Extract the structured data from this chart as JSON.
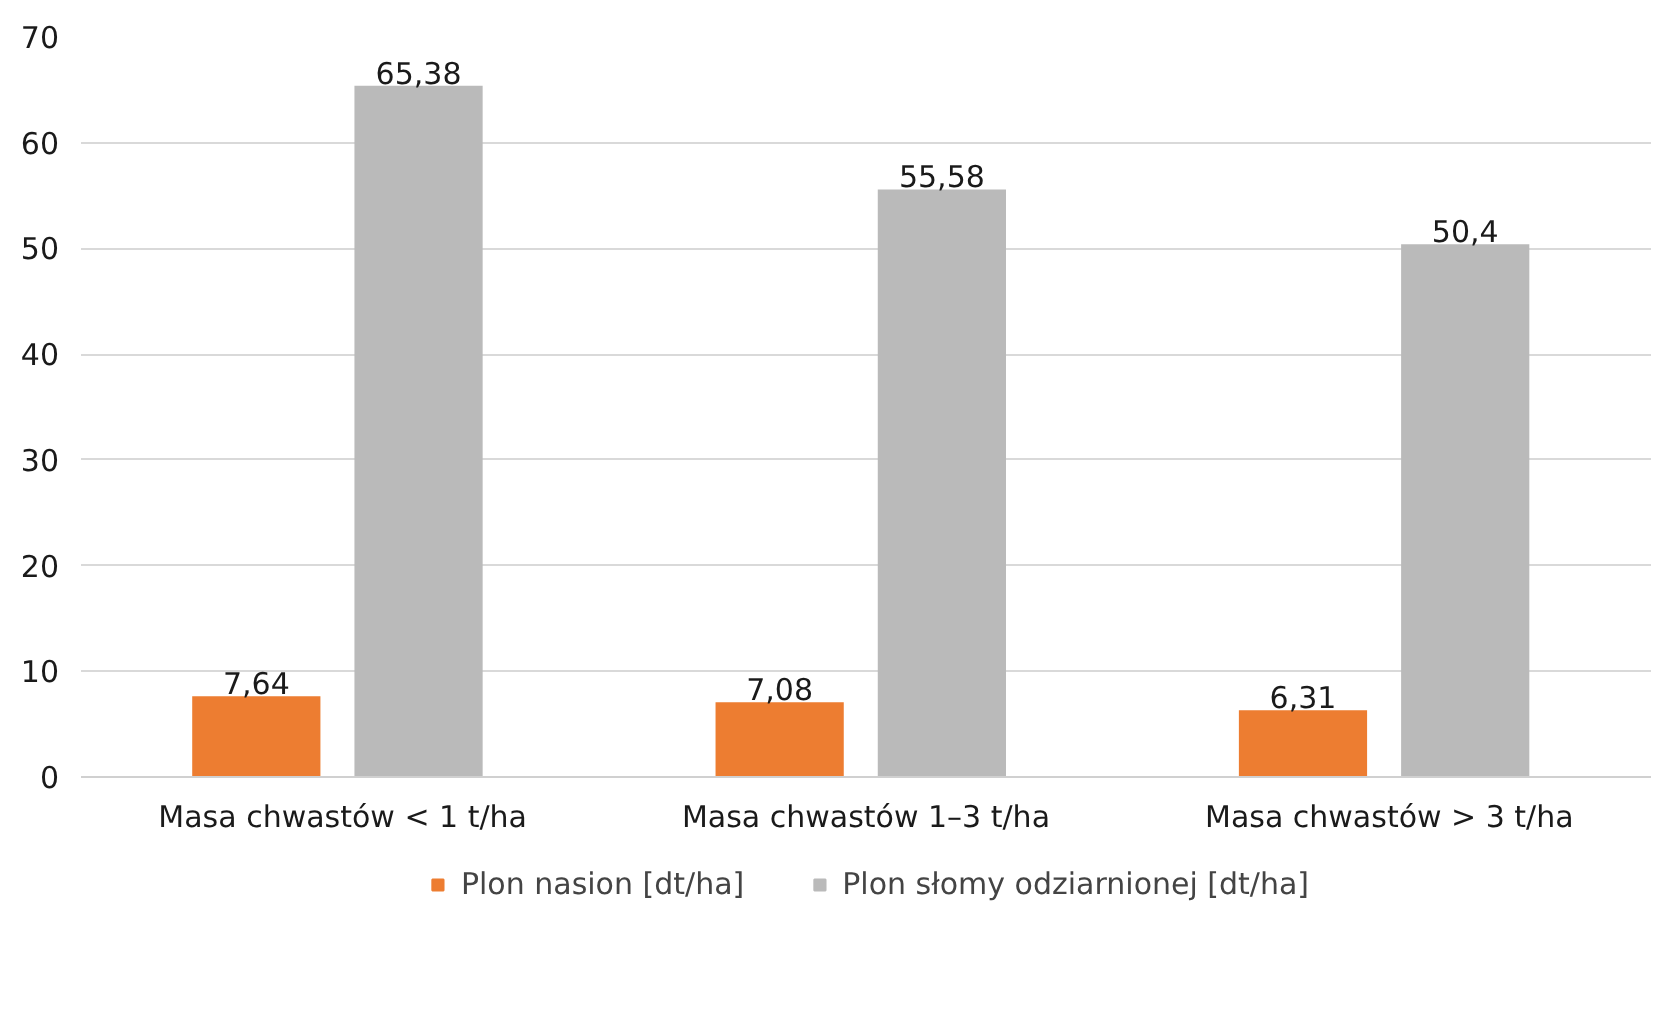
{
  "chart_data": {
    "type": "bar",
    "categories": [
      "Masa chwastów < 1 t/ha",
      "Masa chwastów 1–3 t/ha",
      "Masa chwastów > 3 t/ha"
    ],
    "series": [
      {
        "name": "Plon nasion [dt/ha]",
        "color": "#ed7d31",
        "values": [
          7.64,
          7.08,
          6.31
        ],
        "value_labels": [
          "7,64",
          "7,08",
          "6,31"
        ]
      },
      {
        "name": "Plon słomy odziarnionej [dt/ha]",
        "color": "#bababa",
        "values": [
          65.38,
          55.58,
          50.4
        ],
        "value_labels": [
          "65,38",
          "55,58",
          "50,4"
        ]
      }
    ],
    "ylim": [
      0,
      70
    ],
    "yticks": [
      0,
      10,
      20,
      30,
      40,
      50,
      60,
      70
    ],
    "grid": "y",
    "legend": "bottom"
  }
}
